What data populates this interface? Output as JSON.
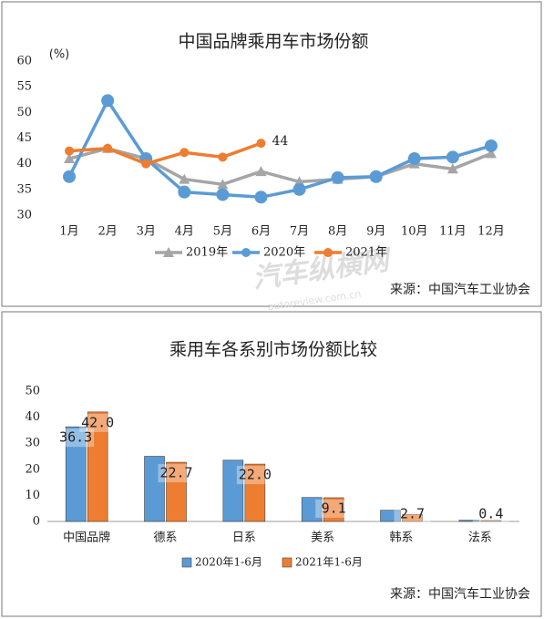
{
  "chart_data": [
    {
      "type": "line",
      "title": "中国品牌乘用车市场份额",
      "y_label": "(%)",
      "categories": [
        "1月",
        "2月",
        "3月",
        "4月",
        "5月",
        "6月",
        "7月",
        "8月",
        "9月",
        "10月",
        "11月",
        "12月"
      ],
      "series": [
        {
          "name": "2019年",
          "color": "#a5a5a5",
          "values": [
            41,
            43,
            41,
            37,
            36,
            38.5,
            36.5,
            37,
            37.5,
            40,
            39,
            42
          ]
        },
        {
          "name": "2020年",
          "color": "#5b9bd5",
          "values": [
            37.5,
            52.3,
            41,
            34.5,
            34,
            33.5,
            35,
            37.3,
            37.5,
            41,
            41.3,
            43.5
          ]
        },
        {
          "name": "2021年",
          "color": "#ed7d31",
          "values": [
            42.5,
            43,
            40,
            42.2,
            41.3,
            44,
            null,
            null,
            null,
            null,
            null,
            null
          ],
          "value_labels": [
            null,
            null,
            null,
            null,
            null,
            "44",
            null,
            null,
            null,
            null,
            null,
            null
          ]
        }
      ],
      "ylim": [
        30,
        60
      ],
      "yticks": [
        30,
        35,
        40,
        45,
        50,
        55,
        60
      ],
      "legend": "bottom",
      "source": "来源：中国汽车工业协会",
      "watermark": "汽车纵横网",
      "watermark_url": "autoreview.com.cn"
    },
    {
      "type": "bar",
      "title": "乘用车各系别市场份额比较",
      "categories": [
        "中国品牌",
        "德系",
        "日系",
        "美系",
        "韩系",
        "法系"
      ],
      "series": [
        {
          "name": "2020年1-6月",
          "color": "#5b9bd5",
          "values": [
            36.3,
            25,
            23.5,
            9.2,
            4.3,
            0.5
          ],
          "value_labels": [
            "36.3",
            null,
            null,
            null,
            null,
            null
          ]
        },
        {
          "name": "2021年1-6月",
          "color": "#ed7d31",
          "values": [
            42.0,
            22.7,
            22.0,
            9.1,
            2.7,
            0.4
          ],
          "value_labels": [
            "42.0",
            "22.7",
            "22.0",
            "9.1",
            "2.7",
            "0.4"
          ]
        }
      ],
      "ylim": [
        0,
        50
      ],
      "yticks": [
        0,
        10,
        20,
        30,
        40,
        50
      ],
      "legend": "bottom",
      "source": "来源：中国汽车工业协会"
    }
  ]
}
